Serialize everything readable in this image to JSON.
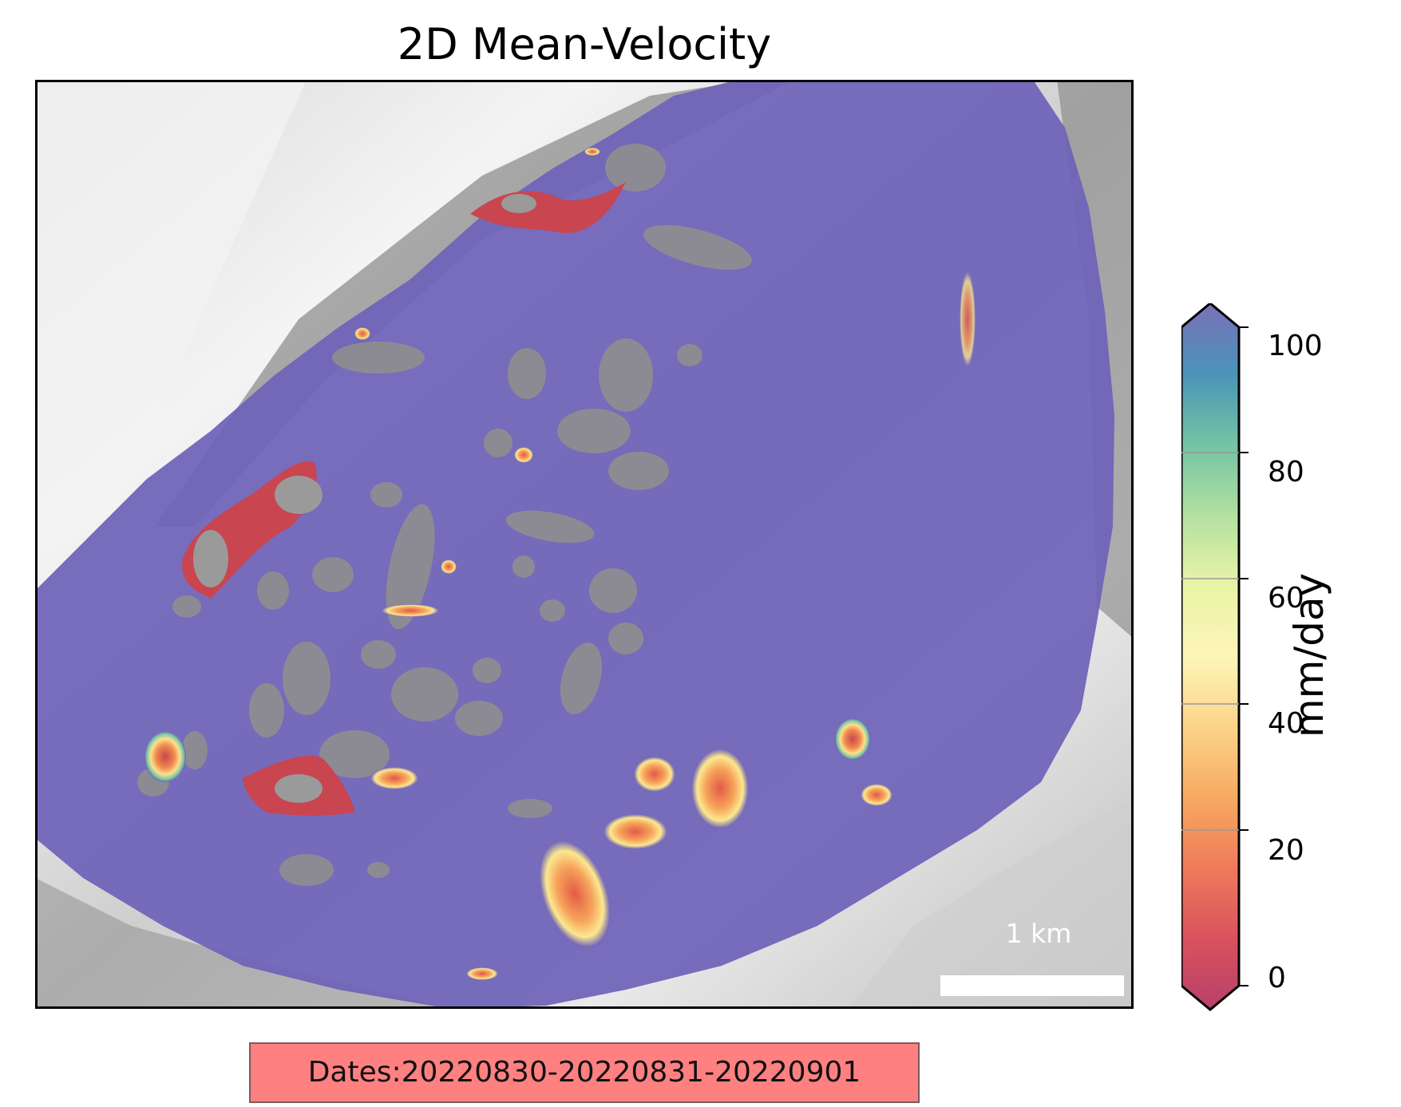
{
  "title": "2D Mean-Velocity",
  "scale_bar": {
    "label": "1 km"
  },
  "colorbar": {
    "label": "mm/day",
    "ticks": [
      "0",
      "20",
      "40",
      "60",
      "80",
      "100"
    ],
    "range": [
      0,
      100
    ],
    "colormap": "Spectral",
    "extend": "both"
  },
  "dates_box": {
    "text": "Dates:20220830-20220831-20220901",
    "background": "#ff8080"
  },
  "colors": {
    "velocity_fill": "#6f62b8",
    "hillshade_light": "#e8e8e8",
    "hillshade_dark": "#6f6f6f",
    "frame": "#000000"
  }
}
